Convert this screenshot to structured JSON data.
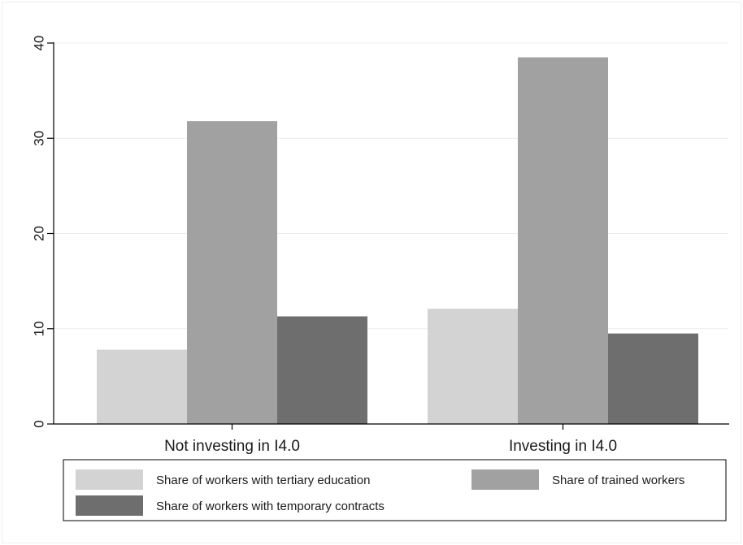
{
  "chart_data": {
    "type": "bar",
    "categories": [
      "Not investing in I4.0",
      "Investing in I4.0"
    ],
    "series": [
      {
        "name": "Share of workers with tertiary education",
        "values": [
          7.8,
          12.1
        ],
        "color": "#d3d3d3"
      },
      {
        "name": "Share of trained workers",
        "values": [
          31.8,
          38.5
        ],
        "color": "#a1a1a1"
      },
      {
        "name": "Share of workers with temporary contracts",
        "values": [
          11.3,
          9.5
        ],
        "color": "#6e6e6e"
      }
    ],
    "yticks": [
      "0",
      "10",
      "20",
      "30",
      "40"
    ],
    "ylim": [
      0,
      40
    ],
    "grid": true,
    "legend_position": "bottom"
  }
}
